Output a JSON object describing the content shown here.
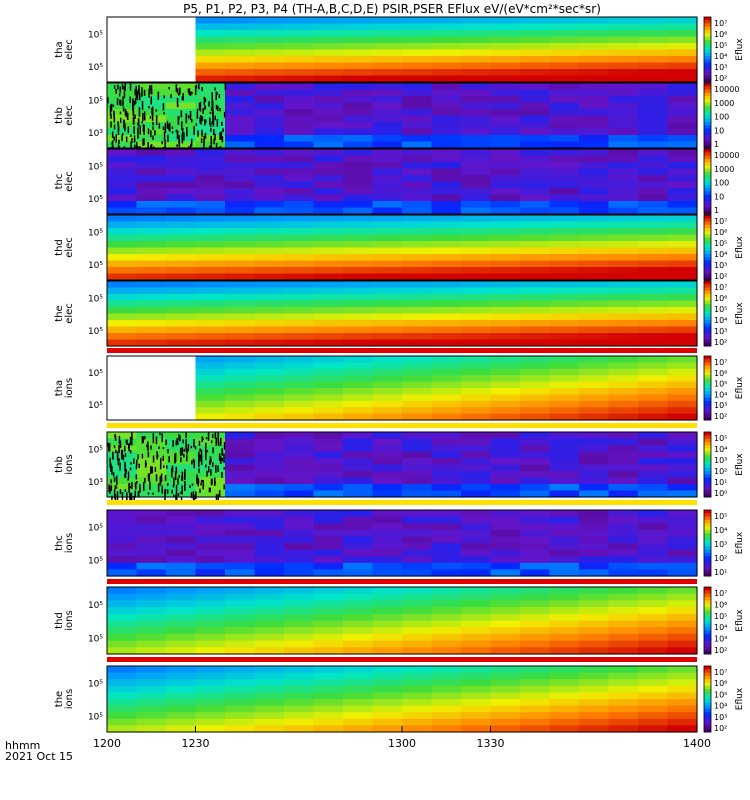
{
  "title": "P5, P1, P2, P3, P4 (TH-A,B,C,D,E) PSIR,PSER EFlux eV/(eV*cm²*sec*sr)",
  "time_axis": {
    "labels": [
      "1200",
      "1230",
      "1300",
      "1330",
      "1400"
    ],
    "format_label": "hhmm",
    "date_label": "2021 Oct 15"
  },
  "colorbar_label": "Eflux",
  "chart_data": [
    {
      "type": "heatmap",
      "probe": "tha",
      "species": "elec",
      "ylabel": [
        "tha",
        "elec"
      ],
      "ytick_labels": [
        "10⁵",
        "10⁵"
      ],
      "cbar_ticks": [
        "10⁷",
        "10⁶",
        "10⁵",
        "10⁴",
        "10³",
        "10²"
      ],
      "cbar_label": "Eflux",
      "data_gap": [
        1200,
        1235
      ],
      "background": "high",
      "x_start": 1200,
      "x_end": 1400
    },
    {
      "type": "heatmap",
      "probe": "thb",
      "species": "elec",
      "ylabel": [
        "thb",
        "elec"
      ],
      "ytick_labels": [
        "10⁵",
        "10³"
      ],
      "cbar_ticks": [
        "10000",
        "1000",
        "100",
        "10",
        "1"
      ],
      "cbar_label": "",
      "noise_until": [
        1200,
        1240
      ],
      "background": "low",
      "x_start": 1200,
      "x_end": 1400
    },
    {
      "type": "heatmap",
      "probe": "thc",
      "species": "elec",
      "ylabel": [
        "thc",
        "elec"
      ],
      "ytick_labels": [
        "10⁵",
        "10⁵"
      ],
      "cbar_ticks": [
        "10000",
        "1000",
        "100",
        "10",
        "1"
      ],
      "cbar_label": "",
      "background": "low",
      "x_start": 1200,
      "x_end": 1400
    },
    {
      "type": "heatmap",
      "probe": "thd",
      "species": "elec",
      "ylabel": [
        "thd",
        "elec"
      ],
      "ytick_labels": [
        "10⁵",
        "10⁵"
      ],
      "cbar_ticks": [
        "10⁷",
        "10⁶",
        "10⁵",
        "10⁴",
        "10³",
        "10²"
      ],
      "cbar_label": "Eflux",
      "background": "high",
      "x_start": 1200,
      "x_end": 1400
    },
    {
      "type": "heatmap",
      "probe": "the",
      "species": "elec",
      "ylabel": [
        "the",
        "elec"
      ],
      "ytick_labels": [
        "10⁵",
        "10⁵"
      ],
      "cbar_ticks": [
        "10⁷",
        "10⁶",
        "10⁵",
        "10⁴",
        "10³",
        "10²"
      ],
      "cbar_label": "Eflux",
      "background": "high",
      "x_start": 1200,
      "x_end": 1400
    },
    {
      "type": "heatmap",
      "probe": "tha",
      "species": "ions",
      "ylabel": [
        "tha",
        "ions"
      ],
      "ytick_labels": [
        "10⁵",
        "10⁵"
      ],
      "cbar_ticks": [
        "10⁷",
        "10⁶",
        "10⁵",
        "10⁴",
        "10³",
        "10²"
      ],
      "cbar_label": "Eflux",
      "data_gap": [
        1200,
        1235
      ],
      "background": "mid",
      "x_start": 1200,
      "x_end": 1400
    },
    {
      "type": "heatmap",
      "probe": "thb",
      "species": "ions",
      "ylabel": [
        "thb",
        "ions"
      ],
      "ytick_labels": [
        "10⁵",
        "10³"
      ],
      "cbar_ticks": [
        "10⁵",
        "10⁴",
        "10³",
        "10²",
        "10¹",
        "10⁰"
      ],
      "cbar_label": "Eflux",
      "noise_until": [
        1200,
        1240
      ],
      "background": "low",
      "x_start": 1200,
      "x_end": 1400
    },
    {
      "type": "heatmap",
      "probe": "thc",
      "species": "ions",
      "ylabel": [
        "thc",
        "ions"
      ],
      "ytick_labels": [
        "10⁵",
        "10⁵"
      ],
      "cbar_ticks": [
        "10⁵",
        "10⁴",
        "10³",
        "10²",
        "10¹"
      ],
      "cbar_label": "Eflux",
      "background": "low",
      "x_start": 1200,
      "x_end": 1400
    },
    {
      "type": "heatmap",
      "probe": "thd",
      "species": "ions",
      "ylabel": [
        "thd",
        "ions"
      ],
      "ytick_labels": [
        "10⁵",
        "10⁵"
      ],
      "cbar_ticks": [
        "10⁷",
        "10⁶",
        "10⁵",
        "10⁴",
        "10³",
        "10²"
      ],
      "cbar_label": "Eflux",
      "background": "mid",
      "x_start": 1200,
      "x_end": 1400
    },
    {
      "type": "heatmap",
      "probe": "the",
      "species": "ions",
      "ylabel": [
        "the",
        "ions"
      ],
      "ytick_labels": [
        "10⁵",
        "10⁵"
      ],
      "cbar_ticks": [
        "10⁷",
        "10⁶",
        "10⁵",
        "10⁴",
        "10³",
        "10²"
      ],
      "cbar_label": "Eflux",
      "background": "mid",
      "x_start": 1200,
      "x_end": 1400
    }
  ]
}
